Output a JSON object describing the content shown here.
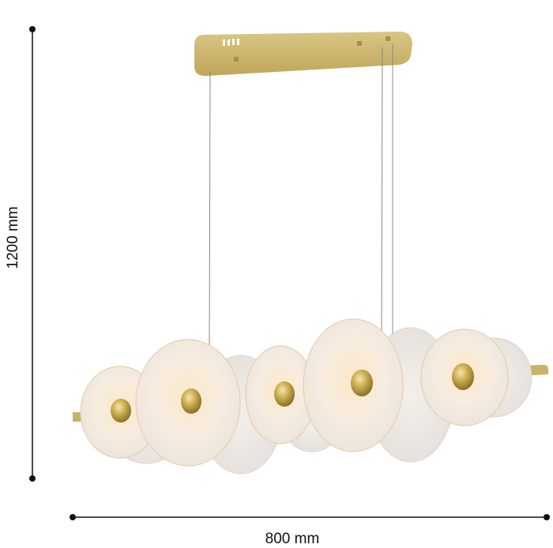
{
  "dimensions": {
    "height_label": "1200 mm",
    "width_label": "800 mm"
  },
  "colors": {
    "brass": "#c9b36a",
    "disc": "#f4ece2",
    "line": "#111111"
  }
}
